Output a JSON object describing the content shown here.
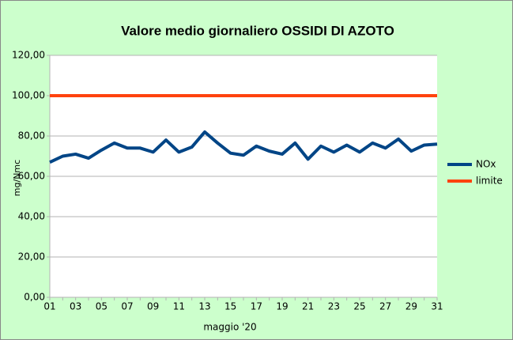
{
  "chart_data": {
    "type": "line",
    "title": "Valore medio giornaliero OSSIDI DI AZOTO",
    "x_label": "maggio '20",
    "y_label": "mg/Nmc",
    "categories": [
      "01",
      null,
      "03",
      null,
      "05",
      null,
      "07",
      null,
      "09",
      null,
      "11",
      null,
      "13",
      null,
      "15",
      null,
      "17",
      null,
      "19",
      null,
      "21",
      null,
      "23",
      null,
      "25",
      null,
      "27",
      null,
      "29",
      null,
      "31"
    ],
    "series": [
      {
        "name": "NOx",
        "color": "#004586",
        "values": [
          67,
          70,
          71,
          69,
          73,
          76.5,
          74,
          74,
          72,
          78,
          72,
          74.5,
          82,
          76.5,
          71.5,
          70.5,
          75,
          72.5,
          71,
          76.5,
          68.5,
          75,
          72,
          75.5,
          72,
          76.5,
          74,
          78.5,
          72.5,
          75.5,
          76
        ]
      },
      {
        "name": "limite",
        "color": "#ff420e",
        "values": [
          100,
          100,
          100,
          100,
          100,
          100,
          100,
          100,
          100,
          100,
          100,
          100,
          100,
          100,
          100,
          100,
          100,
          100,
          100,
          100,
          100,
          100,
          100,
          100,
          100,
          100,
          100,
          100,
          100,
          100,
          100
        ]
      }
    ],
    "ylim": [
      0,
      120
    ],
    "yticks": [
      {
        "value": 0,
        "label": "0,00"
      },
      {
        "value": 20,
        "label": "20,00"
      },
      {
        "value": 40,
        "label": "40,00"
      },
      {
        "value": 60,
        "label": "60,00"
      },
      {
        "value": 80,
        "label": "80,00"
      },
      {
        "value": 100,
        "label": "100,00"
      },
      {
        "value": 120,
        "label": "120,00"
      }
    ],
    "grid": true,
    "legend": "right"
  }
}
